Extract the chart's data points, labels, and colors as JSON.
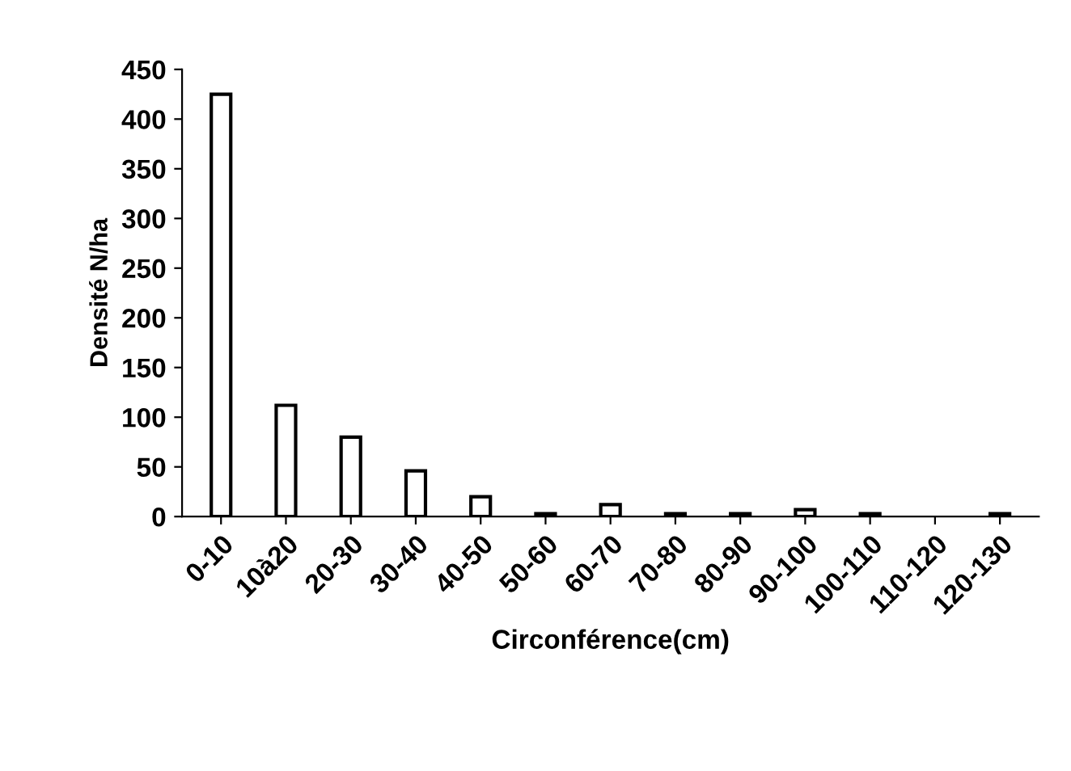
{
  "chart_data": {
    "type": "bar",
    "xlabel": "Circonférence(cm)",
    "ylabel": "Densité N/ha",
    "categories": [
      "0-10",
      "10à20",
      "20-30",
      "30-40",
      "40-50",
      "50-60",
      "60-70",
      "70-80",
      "80-90",
      "90-100",
      "100-110",
      "110-120",
      "120-130"
    ],
    "values": [
      425,
      112,
      80,
      46,
      20,
      3,
      12,
      3,
      3,
      7,
      3,
      null,
      3
    ],
    "color": "#ffffff",
    "ylim": [
      0,
      450
    ],
    "yticks": [
      0,
      50,
      100,
      150,
      200,
      250,
      300,
      350,
      400,
      450
    ],
    "grid": false
  }
}
